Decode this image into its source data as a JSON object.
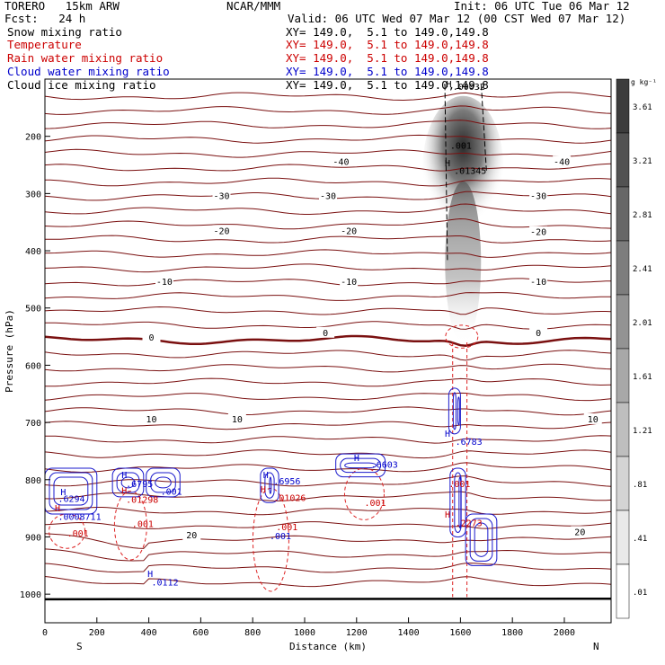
{
  "header": {
    "model": "TORERO   15km ARW",
    "center": "NCAR/MMM",
    "init": "Init: 06 UTC Tue 06 Mar 12",
    "fcst": "Fcst:   24 h",
    "valid": "Valid: 06 UTC Wed 07 Mar 12 (00 CST Wed 07 Mar 12)"
  },
  "legend": [
    {
      "label": "Snow mixing ratio",
      "xy": "XY= 149.0,  5.1 to 149.0,149.8",
      "color": "#000000"
    },
    {
      "label": "Temperature",
      "xy": "XY= 149.0,  5.1 to 149.0,149.8",
      "color": "#cc0000"
    },
    {
      "label": "Rain water mixing ratio",
      "xy": "XY= 149.0,  5.1 to 149.0,149.8",
      "color": "#cc0000"
    },
    {
      "label": "Cloud water mixing ratio",
      "xy": "XY= 149.0,  5.1 to 149.0,149.8",
      "color": "#0000cc"
    },
    {
      "label": "Cloud ice mixing ratio",
      "xy": "XY= 149.0,  5.1 to 149.0,149.8",
      "color": "#000000"
    }
  ],
  "chart_data": {
    "type": "cross-section contour",
    "xlabel": "Distance (km)",
    "ylabel": "Pressure (hPa)",
    "xlim": [
      0,
      2180
    ],
    "ylim": [
      1050,
      100
    ],
    "x_ticks": [
      "0",
      "200",
      "400",
      "600",
      "800",
      "1000",
      "1200",
      "1400",
      "1600",
      "1800",
      "2000"
    ],
    "y_ticks": [
      "200",
      "300",
      "400",
      "500",
      "600",
      "700",
      "800",
      "900",
      "1000"
    ],
    "x_ends": {
      "left": "S",
      "right": "N"
    },
    "colorbar": {
      "unit": "g kg⁻¹",
      "labels": [
        "3.61",
        "3.21",
        "2.81",
        "2.41",
        "2.01",
        "1.61",
        "1.21",
        ".81",
        ".41",
        ".01"
      ]
    },
    "isotherm_labels": [
      {
        "x": 1140,
        "p": 245,
        "text": "-40"
      },
      {
        "x": 1990,
        "p": 245,
        "text": "-40"
      },
      {
        "x": 680,
        "p": 305,
        "text": "-30"
      },
      {
        "x": 1090,
        "p": 305,
        "text": "-30"
      },
      {
        "x": 1900,
        "p": 305,
        "text": "-30"
      },
      {
        "x": 680,
        "p": 366,
        "text": "-20"
      },
      {
        "x": 1170,
        "p": 366,
        "text": "-20"
      },
      {
        "x": 1900,
        "p": 368,
        "text": "-20"
      },
      {
        "x": 460,
        "p": 455,
        "text": "-10"
      },
      {
        "x": 1170,
        "p": 455,
        "text": "-10"
      },
      {
        "x": 1900,
        "p": 455,
        "text": "-10"
      },
      {
        "x": 410,
        "p": 552,
        "text": "0"
      },
      {
        "x": 1080,
        "p": 544,
        "text": "0"
      },
      {
        "x": 1900,
        "p": 544,
        "text": "0"
      },
      {
        "x": 410,
        "p": 695,
        "text": "10"
      },
      {
        "x": 740,
        "p": 695,
        "text": "10"
      },
      {
        "x": 2110,
        "p": 695,
        "text": "10"
      },
      {
        "x": 565,
        "p": 898,
        "text": "20"
      },
      {
        "x": 2060,
        "p": 892,
        "text": "20"
      }
    ],
    "value_labels": [
      {
        "x": 1570,
        "p": 119,
        "text": ".00032",
        "color": "#000000"
      },
      {
        "x": 1560,
        "p": 222,
        "text": ".001",
        "color": "#000000"
      },
      {
        "x": 1575,
        "p": 266,
        "text": ".01345",
        "color": "#000000"
      },
      {
        "x": 50,
        "p": 839,
        "text": ".6294",
        "color": "#0000cc"
      },
      {
        "x": 50,
        "p": 870,
        "text": ".0008711",
        "color": "#0000cc"
      },
      {
        "x": 312,
        "p": 813,
        "text": ".6795",
        "color": "#0000cc"
      },
      {
        "x": 312,
        "p": 840,
        "text": ".01298",
        "color": "#cc0000"
      },
      {
        "x": 445,
        "p": 826,
        "text": ".001",
        "color": "#0000cc"
      },
      {
        "x": 335,
        "p": 883,
        "text": ".001",
        "color": "#cc0000"
      },
      {
        "x": 85,
        "p": 899,
        "text": ".001",
        "color": "#cc0000"
      },
      {
        "x": 880,
        "p": 808,
        "text": ".6956",
        "color": "#0000cc"
      },
      {
        "x": 880,
        "p": 837,
        "text": ".01026",
        "color": "#cc0000"
      },
      {
        "x": 890,
        "p": 888,
        "text": ".001",
        "color": "#cc0000"
      },
      {
        "x": 865,
        "p": 904,
        "text": ".001",
        "color": "#0000cc"
      },
      {
        "x": 1255,
        "p": 779,
        "text": ".6603",
        "color": "#0000cc"
      },
      {
        "x": 1230,
        "p": 846,
        "text": ".001",
        "color": "#cc0000"
      },
      {
        "x": 1580,
        "p": 739,
        "text": ".6783",
        "color": "#0000cc"
      },
      {
        "x": 1555,
        "p": 813,
        "text": ".001",
        "color": "#cc0000"
      },
      {
        "x": 1580,
        "p": 881,
        "text": ".2273",
        "color": "#cc0000"
      },
      {
        "x": 410,
        "p": 985,
        "text": ".0112",
        "color": "#0000cc"
      }
    ],
    "maxima": [
      {
        "x": 1540,
        "p": 252,
        "color": "#000000"
      },
      {
        "x": 1545,
        "p": 114,
        "color": "#000000"
      },
      {
        "x": 60,
        "p": 827,
        "color": "#0000cc"
      },
      {
        "x": 38,
        "p": 855,
        "color": "#cc0000"
      },
      {
        "x": 295,
        "p": 797,
        "color": "#0000cc"
      },
      {
        "x": 295,
        "p": 825,
        "color": "#cc0000"
      },
      {
        "x": 840,
        "p": 797,
        "color": "#0000cc"
      },
      {
        "x": 830,
        "p": 822,
        "color": "#cc0000"
      },
      {
        "x": 1190,
        "p": 767,
        "color": "#0000cc"
      },
      {
        "x": 1540,
        "p": 725,
        "color": "#0000cc"
      },
      {
        "x": 1540,
        "p": 866,
        "color": "#cc0000"
      },
      {
        "x": 395,
        "p": 970,
        "color": "#0000cc"
      }
    ]
  }
}
